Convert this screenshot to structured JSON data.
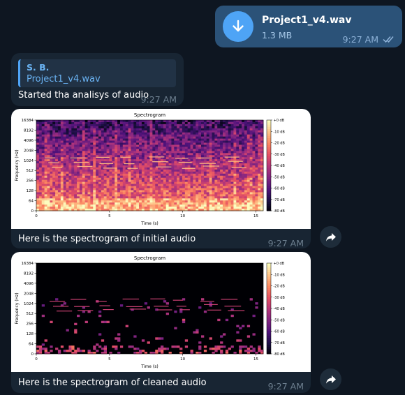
{
  "outgoing_file": {
    "name": "Project1_v4.wav",
    "size": "1.3 MB",
    "time": "9:27 AM",
    "icon": "download-arrow-icon",
    "ticks_icon": "double-check-icon"
  },
  "incoming_message": {
    "reply_author": "S. B.",
    "reply_text": "Project1_v4.wav",
    "text": "Started tha analisys of audio",
    "time": "9:27 AM"
  },
  "spectrogram_messages": [
    {
      "caption": "Here is the spectrogram of initial audio",
      "time": "9:27 AM",
      "forward_icon": "forward-arrow-icon"
    },
    {
      "caption": "Here is the spectrogram of cleaned audio",
      "time": "9:27 AM",
      "forward_icon": "forward-arrow-icon"
    }
  ],
  "chart_data": [
    {
      "type": "heatmap",
      "title": "Spectrogram",
      "xlabel": "Time (s)",
      "ylabel": "Frequency (Hz)",
      "x_ticks": [
        0,
        5,
        10,
        15
      ],
      "y_ticks": [
        "0",
        "64",
        "128",
        "256",
        "512",
        "1024",
        "2048",
        "4096",
        "8192",
        "16384"
      ],
      "xlim": [
        0,
        15.5
      ],
      "colorbar_ticks": [
        "+0 dB",
        "-10 dB",
        "-20 dB",
        "-30 dB",
        "-40 dB",
        "-50 dB",
        "-60 dB",
        "-70 dB",
        "-80 dB"
      ],
      "colormap": "magma",
      "variant": "initial"
    },
    {
      "type": "heatmap",
      "title": "Spectrogram",
      "xlabel": "Time (s)",
      "ylabel": "Frequency (Hz)",
      "x_ticks": [
        0,
        5,
        10,
        15
      ],
      "y_ticks": [
        "0",
        "64",
        "128",
        "256",
        "512",
        "1024",
        "2048",
        "4096",
        "8192",
        "16384"
      ],
      "xlim": [
        0,
        15.5
      ],
      "colorbar_ticks": [
        "+0 dB",
        "-10 dB",
        "-20 dB",
        "-30 dB",
        "-40 dB",
        "-50 dB",
        "-60 dB",
        "-70 dB",
        "-80 dB"
      ],
      "colormap": "magma",
      "variant": "cleaned"
    }
  ],
  "colors": {
    "background": "#0e1621",
    "outgoing_bubble": "#2b5278",
    "incoming_bubble": "#182533",
    "accent": "#4ea4f6",
    "link": "#6ab3f3"
  }
}
